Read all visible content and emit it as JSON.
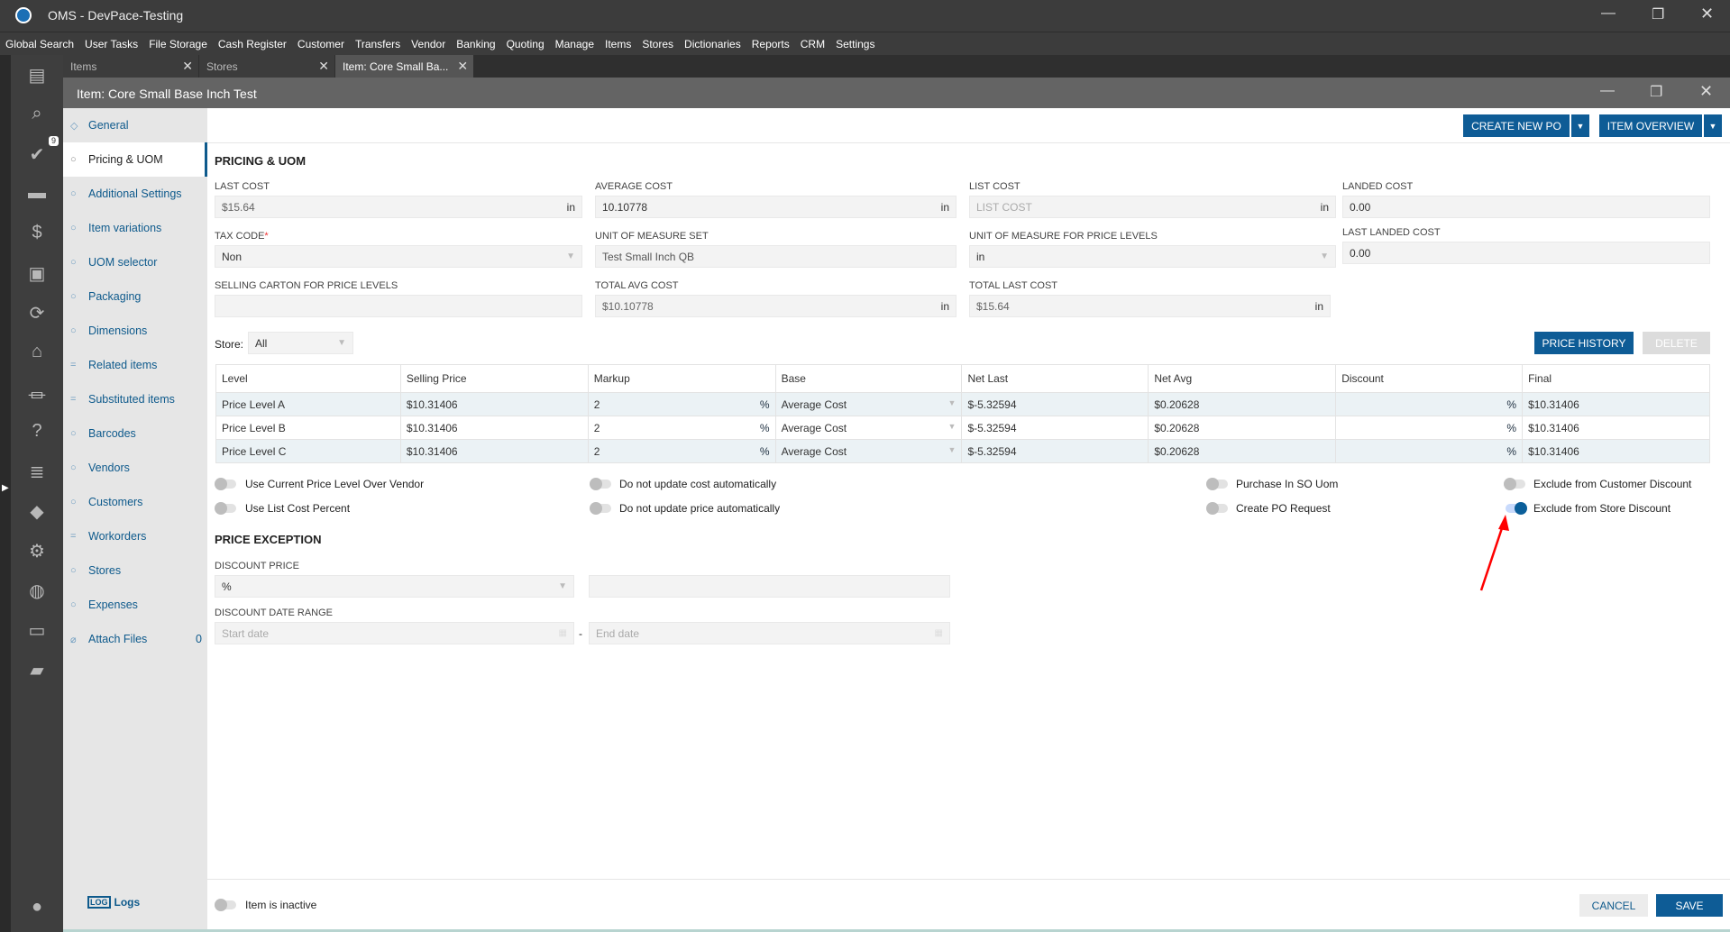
{
  "app": {
    "title": "OMS - DevPace-Testing"
  },
  "menu": [
    "Global Search",
    "User Tasks",
    "File Storage",
    "Cash Register",
    "Customer",
    "Transfers",
    "Vendor",
    "Banking",
    "Quoting",
    "Manage",
    "Items",
    "Stores",
    "Dictionaries",
    "Reports",
    "CRM",
    "Settings"
  ],
  "tabs": [
    {
      "label": "Items"
    },
    {
      "label": "Stores"
    },
    {
      "label": "Item: Core Small Ba..."
    }
  ],
  "sidebar_badge": "9",
  "window_title": "Item: Core Small Base Inch Test",
  "nav": [
    {
      "label": "General"
    },
    {
      "label": "Pricing & UOM"
    },
    {
      "label": "Additional Settings"
    },
    {
      "label": "Item variations"
    },
    {
      "label": "UOM selector"
    },
    {
      "label": "Packaging"
    },
    {
      "label": "Dimensions"
    },
    {
      "label": "Related items"
    },
    {
      "label": "Substituted items"
    },
    {
      "label": "Barcodes"
    },
    {
      "label": "Vendors"
    },
    {
      "label": "Customers"
    },
    {
      "label": "Workorders"
    },
    {
      "label": "Stores"
    },
    {
      "label": "Expenses"
    },
    {
      "label": "Attach Files",
      "count": "0"
    }
  ],
  "logs_label": "Logs",
  "toolbar": {
    "create_po": "CREATE NEW PO",
    "item_overview": "ITEM OVERVIEW"
  },
  "section_title": "PRICING & UOM",
  "fields": {
    "last_cost": {
      "label": "LAST COST",
      "value": "$15.64",
      "suffix": "in"
    },
    "average_cost": {
      "label": "AVERAGE COST",
      "value": "10.10778",
      "suffix": "in"
    },
    "list_cost": {
      "label": "LIST COST",
      "placeholder": "LIST COST",
      "suffix": "in"
    },
    "landed_cost": {
      "label": "LANDED COST",
      "value": "0.00"
    },
    "tax_code": {
      "label": "TAX CODE",
      "required": "*",
      "value": "Non"
    },
    "uom_set": {
      "label": "UNIT OF MEASURE SET",
      "value": "Test Small Inch QB"
    },
    "uom_price_levels": {
      "label": "UNIT OF MEASURE FOR PRICE LEVELS",
      "value": "in"
    },
    "last_landed_cost": {
      "label": "LAST LANDED COST",
      "value": "0.00"
    },
    "selling_carton": {
      "label": "SELLING CARTON FOR PRICE LEVELS",
      "value": ""
    },
    "total_avg_cost": {
      "label": "TOTAL AVG COST",
      "value": "$10.10778",
      "suffix": "in"
    },
    "total_last_cost": {
      "label": "TOTAL LAST COST",
      "value": "$15.64",
      "suffix": "in"
    }
  },
  "store": {
    "label": "Store:",
    "value": "All"
  },
  "price_history": "PRICE HISTORY",
  "delete": "DELETE",
  "table": {
    "headers": [
      "Level",
      "Selling Price",
      "Markup",
      "Base",
      "Net Last",
      "Net Avg",
      "Discount",
      "Final"
    ],
    "rows": [
      {
        "level": "Price Level A",
        "selling": "$10.31406",
        "markup": "2",
        "markup_unit": "%",
        "base": "Average Cost",
        "net_last": "$-5.32594",
        "net_avg": "$0.20628",
        "discount": "",
        "discount_unit": "%",
        "final": "$10.31406"
      },
      {
        "level": "Price Level B",
        "selling": "$10.31406",
        "markup": "2",
        "markup_unit": "%",
        "base": "Average Cost",
        "net_last": "$-5.32594",
        "net_avg": "$0.20628",
        "discount": "",
        "discount_unit": "%",
        "final": "$10.31406"
      },
      {
        "level": "Price Level C",
        "selling": "$10.31406",
        "markup": "2",
        "markup_unit": "%",
        "base": "Average Cost",
        "net_last": "$-5.32594",
        "net_avg": "$0.20628",
        "discount": "",
        "discount_unit": "%",
        "final": "$10.31406"
      }
    ]
  },
  "toggles": [
    {
      "label": "Use Current Price Level Over Vendor",
      "on": false
    },
    {
      "label": "Do not update cost automatically",
      "on": false
    },
    {
      "label": "Purchase In SO Uom",
      "on": false
    },
    {
      "label": "Exclude from Customer Discount",
      "on": false
    },
    {
      "label": "Use List Cost Percent",
      "on": false
    },
    {
      "label": "Do not update price automatically",
      "on": false
    },
    {
      "label": "Create PO Request",
      "on": false
    },
    {
      "label": "Exclude from Store Discount",
      "on": true
    }
  ],
  "price_exception": {
    "title": "PRICE EXCEPTION",
    "discount_price_label": "DISCOUNT PRICE",
    "discount_type": "%",
    "discount_value": "",
    "date_range_label": "DISCOUNT DATE RANGE",
    "start_placeholder": "Start date",
    "end_placeholder": "End date",
    "separator": "-"
  },
  "footer": {
    "inactive_label": "Item is inactive",
    "inactive_on": false,
    "cancel": "CANCEL",
    "save": "SAVE"
  },
  "colors": {
    "accent": "#0e5c96",
    "annotation_arrow": "#ff0000"
  }
}
